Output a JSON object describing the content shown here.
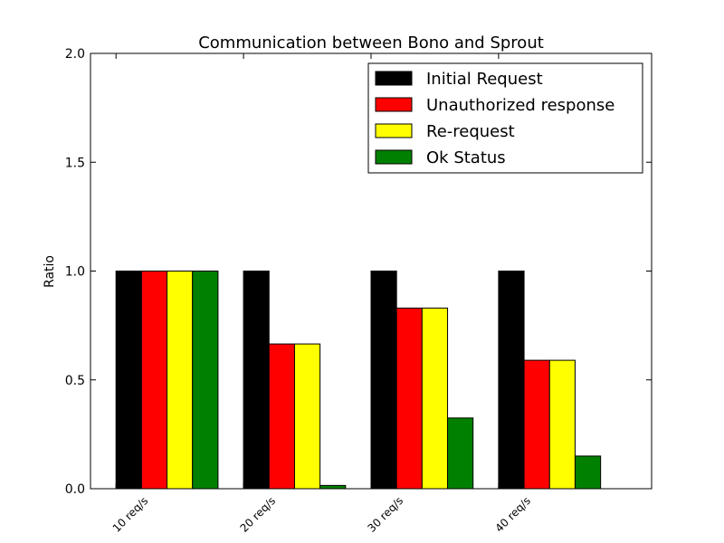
{
  "chart_data": {
    "type": "bar",
    "title": "Communication between Bono and Sprout",
    "xlabel": "",
    "ylabel": "Ratio",
    "ylim": [
      0,
      2.0
    ],
    "yticks": [
      "0.0",
      "0.5",
      "1.0",
      "1.5",
      "2.0"
    ],
    "categories": [
      "10 req/s",
      "20 req/s",
      "30 req/s",
      "40 req/s"
    ],
    "series": [
      {
        "name": "Initial Request",
        "color": "#000000",
        "values": [
          1.0,
          1.0,
          1.0,
          1.0
        ]
      },
      {
        "name": "Unauthorized response",
        "color": "#ff0000",
        "values": [
          1.0,
          0.665,
          0.83,
          0.59
        ]
      },
      {
        "name": "Re-request",
        "color": "#ffff00",
        "values": [
          1.0,
          0.665,
          0.83,
          0.59
        ]
      },
      {
        "name": "Ok Status",
        "color": "#008000",
        "values": [
          1.0,
          0.015,
          0.325,
          0.15
        ]
      }
    ],
    "legend_position": "top-right",
    "grid": false
  }
}
